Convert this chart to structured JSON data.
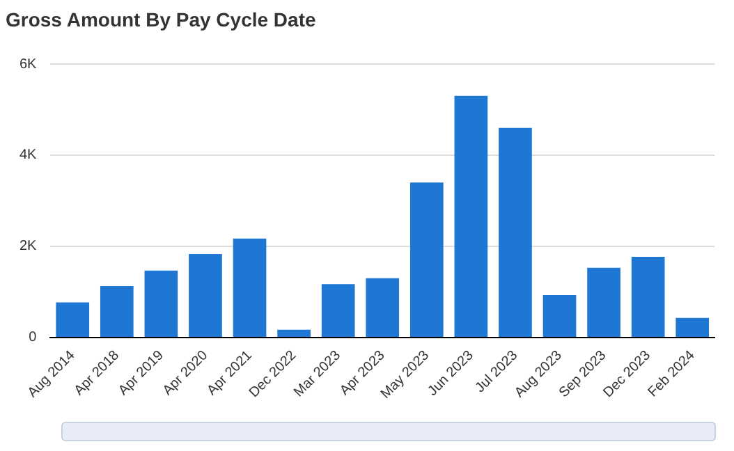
{
  "chart_data": {
    "type": "bar",
    "title": "Gross Amount By Pay Cycle Date",
    "categories": [
      "Aug 2014",
      "Apr 2018",
      "Apr 2019",
      "Apr 2020",
      "Apr 2021",
      "Dec 2022",
      "Mar 2023",
      "Apr 2023",
      "May 2023",
      "Jun 2023",
      "Jul 2023",
      "Aug 2023",
      "Sep 2023",
      "Dec 2023",
      "Feb 2024"
    ],
    "values": [
      770,
      1130,
      1470,
      1830,
      2170,
      170,
      1170,
      1300,
      3400,
      5300,
      4600,
      930,
      1530,
      1770,
      430
    ],
    "color": "#1f77d4",
    "ylim": [
      0,
      6000
    ],
    "yticks": [
      {
        "value": 0,
        "label": "0"
      },
      {
        "value": 2000,
        "label": "2K"
      },
      {
        "value": 4000,
        "label": "4K"
      },
      {
        "value": 6000,
        "label": "6K"
      }
    ],
    "grid": "y",
    "legend": false
  }
}
